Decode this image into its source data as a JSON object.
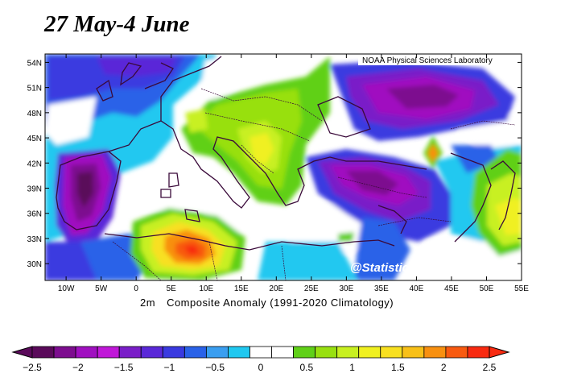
{
  "title": "27 May-4 June",
  "credit": "NOAA Physical Sciences Laboratory",
  "watermark": "@Statisticier",
  "caption": {
    "variable": "2m",
    "description": "Composite Anomaly (1991-2020 Climatology)"
  },
  "map": {
    "lon_range": [
      -13,
      55
    ],
    "lat_range": [
      28,
      55
    ],
    "lon_ticks": [
      "10W",
      "5W",
      "0",
      "5E",
      "10E",
      "15E",
      "20E",
      "25E",
      "30E",
      "35E",
      "40E",
      "45E",
      "50E",
      "55E"
    ],
    "lat_ticks": [
      "54N",
      "51N",
      "48N",
      "45N",
      "42N",
      "39N",
      "36N",
      "33N",
      "30N"
    ]
  },
  "colorbar": {
    "labels": [
      "-2.5",
      "-2",
      "-1.5",
      "-1",
      "-0.5",
      "0",
      "0.5",
      "1",
      "1.5",
      "2",
      "2.5"
    ],
    "colors": [
      "#5a0a5a",
      "#7d0d8f",
      "#a010c0",
      "#c018d8",
      "#7a1ec8",
      "#5a28d8",
      "#3a3ae0",
      "#2a62e8",
      "#3a9ef0",
      "#20c8f0",
      "#ffffff",
      "#ffffff",
      "#60d018",
      "#98e010",
      "#c8f020",
      "#f0f020",
      "#f8e020",
      "#f8c018",
      "#f89010",
      "#f85a10",
      "#f82a10"
    ]
  }
}
